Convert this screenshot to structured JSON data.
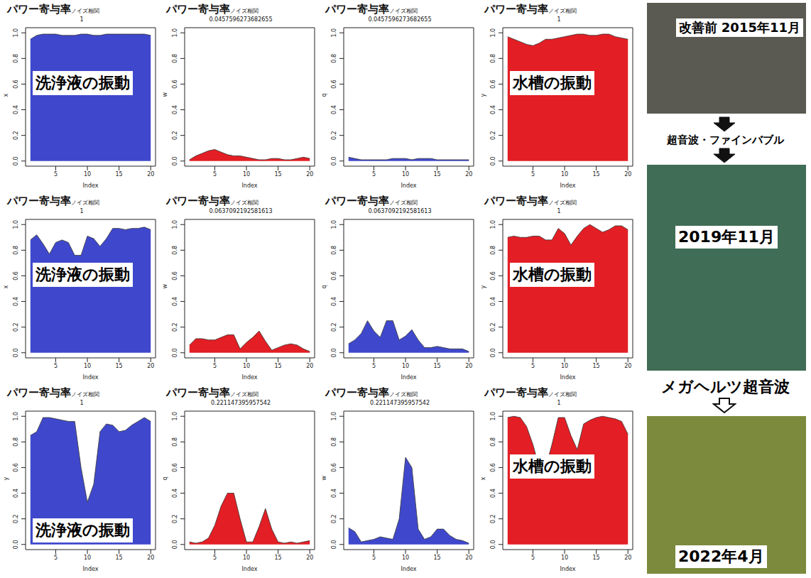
{
  "chart_data": [
    {
      "type": "area",
      "title": "パワー寄与率",
      "title_subscript": "ノイズ相関",
      "subtitle": "1",
      "xlabel": "Index",
      "ylabel": "x",
      "color": "#3f48cc",
      "annotations": [
        "洗浄液の振動"
      ],
      "x": [
        1,
        2,
        3,
        4,
        5,
        6,
        7,
        8,
        9,
        10,
        11,
        12,
        13,
        14,
        15,
        16,
        17,
        18,
        19,
        20
      ],
      "values": [
        0.95,
        0.98,
        0.99,
        0.99,
        0.99,
        0.98,
        0.98,
        0.98,
        0.99,
        0.99,
        0.98,
        0.98,
        0.99,
        0.99,
        0.99,
        0.99,
        0.99,
        0.99,
        0.99,
        0.98
      ],
      "xlim": [
        0.24,
        20.76
      ],
      "ylim": [
        -0.04,
        1.04
      ],
      "xticks": [
        5,
        10,
        15,
        20
      ],
      "yticks": [
        {
          "value": 0,
          "label": "0.0"
        },
        0.2,
        0.4,
        0.6,
        0.8,
        {
          "value": 1,
          "label": "1.0"
        }
      ]
    },
    {
      "type": "area",
      "title": "パワー寄与率",
      "title_subscript": "ノイズ相関",
      "subtitle": "0.0457596273682655",
      "xlabel": "Index",
      "ylabel": "w",
      "color": "#e31e24",
      "x": [
        1,
        2,
        3,
        4,
        5,
        6,
        7,
        8,
        9,
        10,
        11,
        12,
        13,
        14,
        15,
        16,
        17,
        18,
        19,
        20
      ],
      "values": [
        0.01,
        0.04,
        0.06,
        0.08,
        0.09,
        0.07,
        0.05,
        0.04,
        0.04,
        0.03,
        0.02,
        0.01,
        0.01,
        0.02,
        0.02,
        0.01,
        0.01,
        0.02,
        0.03,
        0.02
      ],
      "xlim": [
        0.24,
        20.76
      ],
      "ylim": [
        -0.04,
        1.04
      ],
      "xticks": [
        5,
        10,
        15,
        20
      ],
      "yticks": [
        {
          "value": 0,
          "label": "0.0"
        },
        0.2,
        0.4,
        0.6,
        0.8,
        {
          "value": 1,
          "label": "1.0"
        }
      ]
    },
    {
      "type": "area",
      "title": "パワー寄与率",
      "title_subscript": "ノイズ相関",
      "subtitle": "0.0457596273682655",
      "xlabel": "Index",
      "ylabel": "q",
      "color": "#3f48cc",
      "x": [
        1,
        2,
        3,
        4,
        5,
        6,
        7,
        8,
        9,
        10,
        11,
        12,
        13,
        14,
        15,
        16,
        17,
        18,
        19,
        20
      ],
      "values": [
        0.03,
        0.02,
        0.01,
        0.01,
        0.01,
        0.01,
        0.01,
        0.02,
        0.02,
        0.02,
        0.01,
        0.02,
        0.02,
        0.02,
        0.01,
        0.01,
        0.01,
        0.01,
        0.01,
        0.01
      ],
      "xlim": [
        0.24,
        20.76
      ],
      "ylim": [
        -0.04,
        1.04
      ],
      "xticks": [
        5,
        10,
        15,
        20
      ],
      "yticks": [
        {
          "value": 0,
          "label": "0.0"
        },
        0.2,
        0.4,
        0.6,
        0.8,
        {
          "value": 1,
          "label": "1.0"
        }
      ]
    },
    {
      "type": "area",
      "title": "パワー寄与率",
      "title_subscript": "ノイズ相関",
      "subtitle": "1",
      "xlabel": "Index",
      "ylabel": "y",
      "color": "#e31e24",
      "annotations": [
        "水槽の振動"
      ],
      "x": [
        1,
        2,
        3,
        4,
        5,
        6,
        7,
        8,
        9,
        10,
        11,
        12,
        13,
        14,
        15,
        16,
        17,
        18,
        19,
        20
      ],
      "values": [
        0.97,
        0.95,
        0.93,
        0.91,
        0.9,
        0.92,
        0.95,
        0.95,
        0.96,
        0.97,
        0.98,
        0.99,
        0.99,
        0.98,
        0.98,
        0.99,
        0.99,
        0.97,
        0.96,
        0.95
      ],
      "xlim": [
        0.24,
        20.76
      ],
      "ylim": [
        -0.04,
        1.04
      ],
      "xticks": [
        5,
        10,
        15,
        20
      ],
      "yticks": [
        {
          "value": 0,
          "label": "0.0"
        },
        0.2,
        0.4,
        0.6,
        0.8,
        {
          "value": 1,
          "label": "1.0"
        }
      ]
    },
    {
      "type": "area",
      "title": "パワー寄与率",
      "title_subscript": "ノイズ相関",
      "subtitle": "1",
      "xlabel": "Index",
      "ylabel": "x",
      "color": "#3f48cc",
      "annotations": [
        "洗浄液の振動"
      ],
      "x": [
        1,
        2,
        3,
        4,
        5,
        6,
        7,
        8,
        9,
        10,
        11,
        12,
        13,
        14,
        15,
        16,
        17,
        18,
        19,
        20
      ],
      "values": [
        0.88,
        0.92,
        0.85,
        0.77,
        0.86,
        0.88,
        0.86,
        0.76,
        0.76,
        0.91,
        0.89,
        0.83,
        0.89,
        0.97,
        0.97,
        0.96,
        0.97,
        0.97,
        0.98,
        0.96
      ],
      "xlim": [
        0.24,
        20.76
      ],
      "ylim": [
        -0.04,
        1.04
      ],
      "xticks": [
        5,
        10,
        15,
        20
      ],
      "yticks": [
        {
          "value": 0,
          "label": "0.0"
        },
        0.2,
        0.4,
        0.6,
        0.8,
        {
          "value": 1,
          "label": "1.0"
        }
      ]
    },
    {
      "type": "area",
      "title": "パワー寄与率",
      "title_subscript": "ノイズ相関",
      "subtitle": "0.0637092192581613",
      "xlabel": "Index",
      "ylabel": "w",
      "color": "#e31e24",
      "x": [
        1,
        2,
        3,
        4,
        5,
        6,
        7,
        8,
        9,
        10,
        11,
        12,
        13,
        14,
        15,
        16,
        17,
        18,
        19,
        20
      ],
      "values": [
        0.06,
        0.11,
        0.11,
        0.1,
        0.1,
        0.12,
        0.14,
        0.14,
        0.03,
        0.08,
        0.12,
        0.17,
        0.09,
        0.02,
        0.04,
        0.06,
        0.07,
        0.06,
        0.03,
        0.01
      ],
      "xlim": [
        0.24,
        20.76
      ],
      "ylim": [
        -0.04,
        1.04
      ],
      "xticks": [
        5,
        10,
        15,
        20
      ],
      "yticks": [
        {
          "value": 0,
          "label": "0.0"
        },
        0.2,
        0.4,
        0.6,
        0.8,
        {
          "value": 1,
          "label": "1.0"
        }
      ]
    },
    {
      "type": "area",
      "title": "パワー寄与率",
      "title_subscript": "ノイズ相関",
      "subtitle": "0.0637092192581613",
      "xlabel": "Index",
      "ylabel": "q",
      "color": "#3f48cc",
      "x": [
        1,
        2,
        3,
        4,
        5,
        6,
        7,
        8,
        9,
        10,
        11,
        12,
        13,
        14,
        15,
        16,
        17,
        18,
        19,
        20
      ],
      "values": [
        0.07,
        0.1,
        0.15,
        0.25,
        0.17,
        0.12,
        0.25,
        0.25,
        0.1,
        0.13,
        0.18,
        0.1,
        0.04,
        0.04,
        0.05,
        0.04,
        0.03,
        0.03,
        0.03,
        0.01
      ],
      "xlim": [
        0.24,
        20.76
      ],
      "ylim": [
        -0.04,
        1.04
      ],
      "xticks": [
        5,
        10,
        15,
        20
      ],
      "yticks": [
        {
          "value": 0,
          "label": "0.0"
        },
        0.2,
        0.4,
        0.6,
        0.8,
        {
          "value": 1,
          "label": "1.0"
        }
      ]
    },
    {
      "type": "area",
      "title": "パワー寄与率",
      "title_subscript": "ノイズ相関",
      "subtitle": "1",
      "xlabel": "Index",
      "ylabel": "y",
      "color": "#e31e24",
      "annotations": [
        "水槽の振動"
      ],
      "x": [
        1,
        2,
        3,
        4,
        5,
        6,
        7,
        8,
        9,
        10,
        11,
        12,
        13,
        14,
        15,
        16,
        17,
        18,
        19,
        20
      ],
      "values": [
        0.9,
        0.91,
        0.9,
        0.9,
        0.91,
        0.91,
        0.88,
        0.88,
        0.97,
        0.93,
        0.84,
        0.91,
        0.97,
        1.0,
        0.97,
        0.94,
        0.96,
        0.99,
        0.99,
        0.96
      ],
      "xlim": [
        0.24,
        20.76
      ],
      "ylim": [
        -0.04,
        1.04
      ],
      "xticks": [
        5,
        10,
        15,
        20
      ],
      "yticks": [
        {
          "value": 0,
          "label": "0.0"
        },
        0.2,
        0.4,
        0.6,
        0.8,
        {
          "value": 1,
          "label": "1.0"
        }
      ]
    },
    {
      "type": "area",
      "title": "パワー寄与率",
      "title_subscript": "ノイズ相関",
      "subtitle": "1",
      "xlabel": "Index",
      "ylabel": "y",
      "color": "#3f48cc",
      "annotations": [
        "洗浄液の振動"
      ],
      "x": [
        1,
        2,
        3,
        4,
        5,
        6,
        7,
        8,
        9,
        10,
        11,
        12,
        13,
        14,
        15,
        16,
        17,
        18,
        19,
        20
      ],
      "values": [
        0.85,
        0.88,
        0.99,
        0.99,
        0.98,
        0.97,
        0.96,
        0.96,
        0.6,
        0.33,
        0.47,
        0.88,
        0.94,
        0.93,
        0.88,
        0.89,
        0.93,
        0.96,
        0.99,
        0.96
      ],
      "xlim": [
        0.24,
        20.76
      ],
      "ylim": [
        -0.04,
        1.04
      ],
      "xticks": [
        5,
        10,
        15,
        20
      ],
      "yticks": [
        {
          "value": 0,
          "label": "0.0"
        },
        0.2,
        0.4,
        0.6,
        0.8,
        {
          "value": 1,
          "label": "1.0"
        }
      ]
    },
    {
      "type": "area",
      "title": "パワー寄与率",
      "title_subscript": "ノイズ相関",
      "subtitle": "0.221147395957542",
      "xlabel": "Index",
      "ylabel": "q",
      "color": "#e31e24",
      "x": [
        1,
        2,
        3,
        4,
        5,
        6,
        7,
        8,
        9,
        10,
        11,
        12,
        13,
        14,
        15,
        16,
        17,
        18,
        19,
        20
      ],
      "values": [
        0.02,
        0.01,
        0.02,
        0.05,
        0.15,
        0.3,
        0.4,
        0.4,
        0.2,
        0.02,
        0.02,
        0.14,
        0.28,
        0.12,
        0.02,
        0.01,
        0.02,
        0.01,
        0.02,
        0.03
      ],
      "xlim": [
        0.24,
        20.76
      ],
      "ylim": [
        -0.04,
        1.04
      ],
      "xticks": [
        5,
        10,
        15,
        20
      ],
      "yticks": [
        {
          "value": 0,
          "label": "0.0"
        },
        0.2,
        0.4,
        0.6,
        0.8,
        {
          "value": 1,
          "label": "1.0"
        }
      ]
    },
    {
      "type": "area",
      "title": "パワー寄与率",
      "title_subscript": "ノイズ相関",
      "subtitle": "0.221147395957542",
      "xlabel": "Index",
      "ylabel": "w",
      "color": "#3f48cc",
      "x": [
        1,
        2,
        3,
        4,
        5,
        6,
        7,
        8,
        9,
        10,
        11,
        12,
        13,
        14,
        15,
        16,
        17,
        18,
        19,
        20
      ],
      "values": [
        0.13,
        0.1,
        0.02,
        0.03,
        0.04,
        0.06,
        0.05,
        0.04,
        0.2,
        0.68,
        0.6,
        0.12,
        0.04,
        0.06,
        0.12,
        0.12,
        0.07,
        0.04,
        0.03,
        0.01
      ],
      "xlim": [
        0.24,
        20.76
      ],
      "ylim": [
        -0.04,
        1.04
      ],
      "xticks": [
        5,
        10,
        15,
        20
      ],
      "yticks": [
        {
          "value": 0,
          "label": "0.0"
        },
        0.2,
        0.4,
        0.6,
        0.8,
        {
          "value": 1,
          "label": "1.0"
        }
      ]
    },
    {
      "type": "area",
      "title": "パワー寄与率",
      "title_subscript": "ノイズ相関",
      "subtitle": "1",
      "xlabel": "Index",
      "ylabel": "x",
      "color": "#e31e24",
      "annotations": [
        "水槽の振動"
      ],
      "x": [
        1,
        2,
        3,
        4,
        5,
        6,
        7,
        8,
        9,
        10,
        11,
        12,
        13,
        14,
        15,
        16,
        17,
        18,
        19,
        20
      ],
      "values": [
        0.99,
        1.0,
        0.99,
        0.92,
        0.78,
        0.6,
        0.6,
        0.78,
        0.99,
        0.99,
        0.85,
        0.74,
        0.94,
        0.97,
        0.99,
        1.0,
        0.99,
        0.98,
        0.96,
        0.86
      ],
      "xlim": [
        0.24,
        20.76
      ],
      "ylim": [
        -0.04,
        1.04
      ],
      "xticks": [
        5,
        10,
        15,
        20
      ],
      "yticks": [
        {
          "value": 0,
          "label": "0.0"
        },
        0.2,
        0.4,
        0.6,
        0.8,
        {
          "value": 1,
          "label": "1.0"
        }
      ]
    }
  ],
  "photos": [
    {
      "label": "改善前 2015年11月"
    },
    {
      "label": "2019年11月"
    },
    {
      "label": "2022年4月"
    }
  ],
  "transitions": [
    "超音波・ファインバブル",
    "メガヘルツ超音波"
  ]
}
